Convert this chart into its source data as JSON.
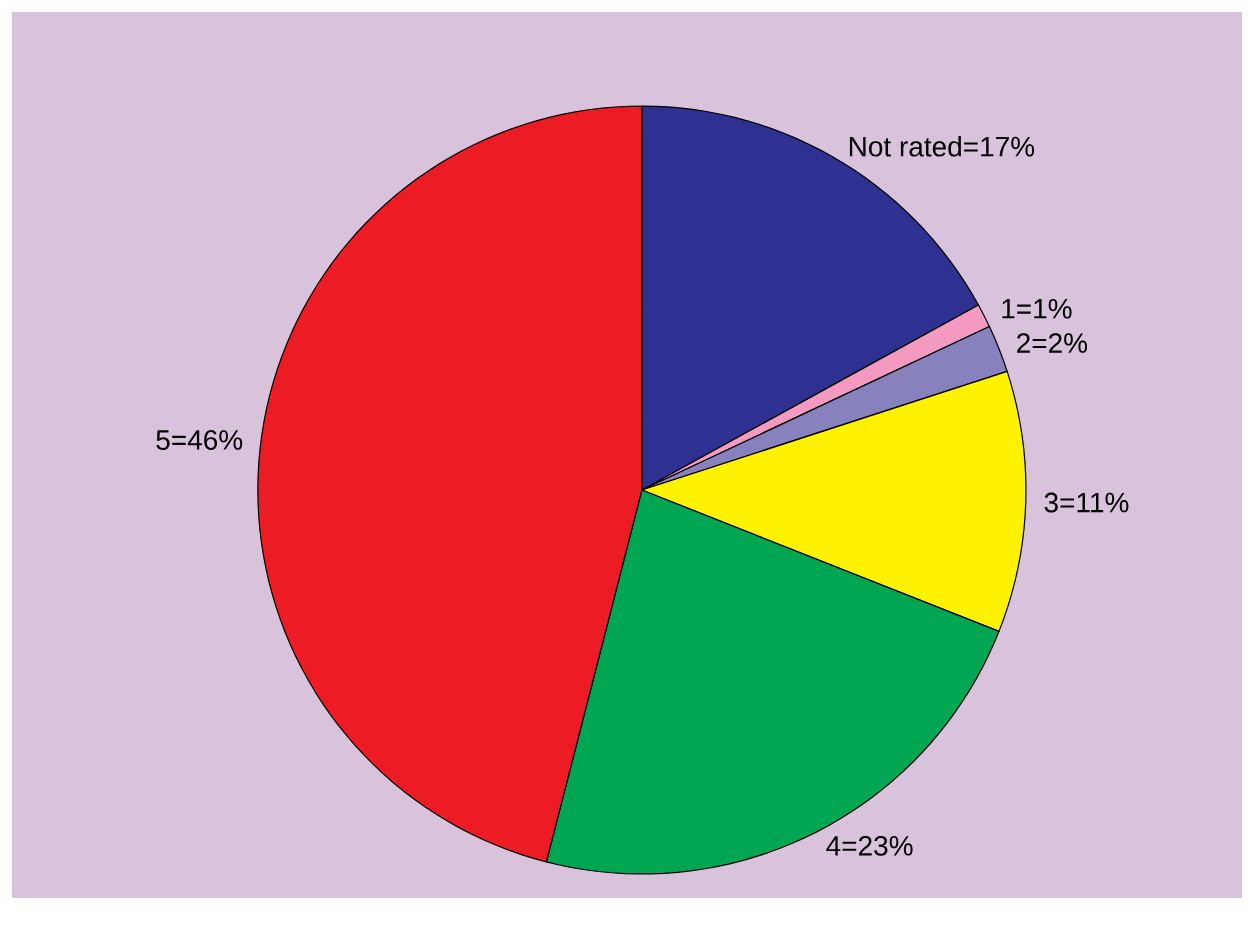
{
  "chart_data": {
    "type": "pie",
    "categories": [
      "Not rated=17%",
      "1=1%",
      "2=2%",
      "3=11%",
      "4=23%",
      "5=46%"
    ],
    "values": [
      17,
      1,
      2,
      11,
      23,
      46
    ],
    "colors": [
      "#2e3192",
      "#f49ac1",
      "#8781bd",
      "#fff200",
      "#00a651",
      "#ed1c24"
    ]
  }
}
